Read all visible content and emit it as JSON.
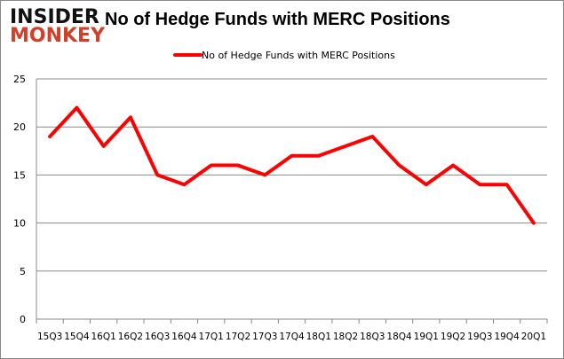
{
  "logo": {
    "line1": "INSIDER",
    "line2": "MONKEY"
  },
  "chart_data": {
    "type": "line",
    "title": "No of Hedge Funds with MERC Positions",
    "categories": [
      "15Q3",
      "15Q4",
      "16Q1",
      "16Q2",
      "16Q3",
      "16Q4",
      "17Q1",
      "17Q2",
      "17Q3",
      "17Q4",
      "18Q1",
      "18Q2",
      "18Q3",
      "18Q4",
      "19Q1",
      "19Q2",
      "19Q3",
      "19Q4",
      "20Q1"
    ],
    "series": [
      {
        "name": "No of Hedge Funds with MERC Positions",
        "values": [
          19,
          22,
          18,
          21,
          15,
          14,
          16,
          16,
          15,
          17,
          17,
          18,
          19,
          16,
          14,
          16,
          14,
          14,
          10
        ],
        "color": "#ff0000"
      }
    ],
    "ylim": [
      0,
      25
    ],
    "yticks": [
      0,
      5,
      10,
      15,
      20,
      25
    ],
    "grid": true,
    "legend": "top-center"
  }
}
